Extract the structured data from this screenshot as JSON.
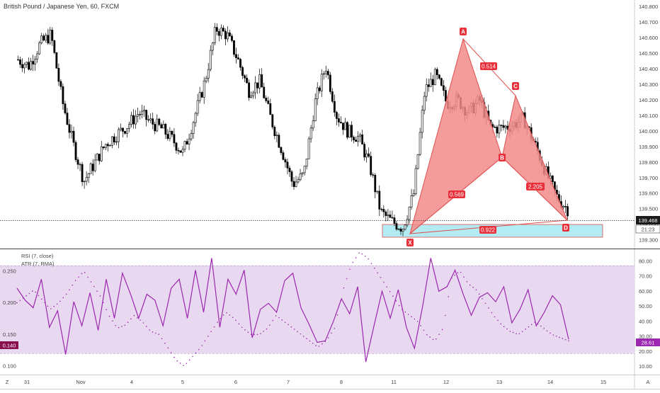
{
  "header": {
    "symbol_title": "British Pound / Japanese Yen, 60, FXCM"
  },
  "price_panel": {
    "y_ticks": [
      "140.800",
      "140.700",
      "140.600",
      "140.500",
      "140.400",
      "140.300",
      "140.200",
      "140.100",
      "140.000",
      "139.900",
      "139.800",
      "139.700",
      "139.600",
      "139.500",
      "139.400",
      "139.300"
    ],
    "last_price_label": "139.468",
    "countdown_label": "21:23"
  },
  "indicator_panel": {
    "rsi_label": "RSI (7, close)",
    "atr_label": "ATR (7, RMA)",
    "left_ticks": [
      "0.250",
      "0.200",
      "0.150",
      "0.100"
    ],
    "right_ticks": [
      "80.00",
      "70.00",
      "60.00",
      "50.00",
      "40.00",
      "30.00",
      "20.00",
      "10.00"
    ],
    "rsi_value_label": "28.61",
    "atr_value_label": "0.140"
  },
  "time_axis": {
    "labels": [
      "31",
      "Nov",
      "4",
      "5",
      "6",
      "7",
      "8",
      "11",
      "12",
      "13",
      "14",
      "15"
    ],
    "corner_left": "Z",
    "corner_right": "A"
  },
  "harmonic_pattern": {
    "points": {
      "X": "X",
      "A": "A",
      "B": "B",
      "C": "C",
      "D": "D"
    },
    "ratios": {
      "xb": "0.569",
      "ac": "0.514",
      "bd": "2.205",
      "xd": "0.922"
    }
  },
  "colors": {
    "candle": "#000000",
    "pattern_fill": "#f28b8b",
    "pattern_line": "#e05050",
    "label_bg": "#e8303a",
    "prz_fill": "#b2ebf2",
    "rsi_line": "#9c27b0",
    "rsi_band": "#e9d9f0",
    "price_tag": "#1a1a1a",
    "atr_tag": "#880e4f",
    "rsi_tag": "#9c27b0"
  },
  "chart_data": [
    {
      "type": "candlestick",
      "title": "British Pound / Japanese Yen, 60, FXCM",
      "ylim": [
        139.26,
        140.82
      ],
      "x": [
        "31",
        "Nov",
        "4",
        "5",
        "6",
        "7",
        "8",
        "11",
        "12",
        "13",
        "14",
        "15"
      ],
      "close_path": [
        140.46,
        140.42,
        140.56,
        140.62,
        140.2,
        139.92,
        139.68,
        139.8,
        139.92,
        139.98,
        140.04,
        140.12,
        140.06,
        140.02,
        139.95,
        139.86,
        140.08,
        140.32,
        140.66,
        140.62,
        140.46,
        140.26,
        140.32,
        140.08,
        139.88,
        139.66,
        139.72,
        140.18,
        140.42,
        140.1,
        140.0,
        139.96,
        139.78,
        139.48,
        139.42,
        139.38,
        139.6,
        140.26,
        140.36,
        140.18,
        140.2,
        140.12,
        140.2,
        140.02,
        140.02,
        140.04,
        140.08,
        139.92,
        139.74,
        139.58,
        139.5
      ],
      "last_price": 139.468,
      "harmonic_pattern": {
        "X": 139.39,
        "A": 140.59,
        "B": 139.91,
        "C": 140.25,
        "D": 139.46,
        "ratios": {
          "XB": 0.569,
          "AC": 0.514,
          "BD": 2.205,
          "XD": 0.922
        }
      },
      "prz": [
        139.36,
        139.44
      ]
    },
    {
      "type": "line",
      "series": [
        {
          "name": "RSI (7, close)",
          "last": 28.61,
          "axis": "right",
          "values": [
            62,
            54,
            49,
            68,
            36,
            47,
            18,
            53,
            37,
            59,
            34,
            68,
            42,
            72,
            58,
            42,
            58,
            54,
            37,
            62,
            68,
            42,
            74,
            46,
            82,
            36,
            68,
            58,
            74,
            29,
            48,
            52,
            46,
            67,
            72,
            49,
            38,
            26,
            27,
            40,
            55,
            45,
            63,
            13,
            37,
            60,
            42,
            61,
            36,
            22,
            50,
            82,
            60,
            63,
            74,
            58,
            44,
            56,
            59,
            53,
            63,
            39,
            48,
            61,
            37,
            46,
            57,
            51,
            28
          ]
        },
        {
          "name": "ATR (7, RMA)",
          "last": 0.14,
          "axis": "left",
          "values": [
            0.2,
            0.21,
            0.22,
            0.205,
            0.19,
            0.2,
            0.215,
            0.235,
            0.25,
            0.23,
            0.21,
            0.18,
            0.16,
            0.165,
            0.18,
            0.17,
            0.155,
            0.15,
            0.13,
            0.11,
            0.1,
            0.115,
            0.13,
            0.15,
            0.17,
            0.185,
            0.175,
            0.16,
            0.15,
            0.15,
            0.16,
            0.18,
            0.17,
            0.16,
            0.15,
            0.14,
            0.13,
            0.14,
            0.16,
            0.22,
            0.26,
            0.28,
            0.27,
            0.25,
            0.23,
            0.21,
            0.19,
            0.18,
            0.17,
            0.15,
            0.14,
            0.16,
            0.24,
            0.25,
            0.23,
            0.22,
            0.2,
            0.18,
            0.165,
            0.155,
            0.15,
            0.16,
            0.17,
            0.16,
            0.15,
            0.145,
            0.14
          ]
        }
      ],
      "left_range": [
        0.09,
        0.28
      ],
      "right_range": [
        6,
        86
      ],
      "band": [
        20,
        80
      ]
    }
  ]
}
